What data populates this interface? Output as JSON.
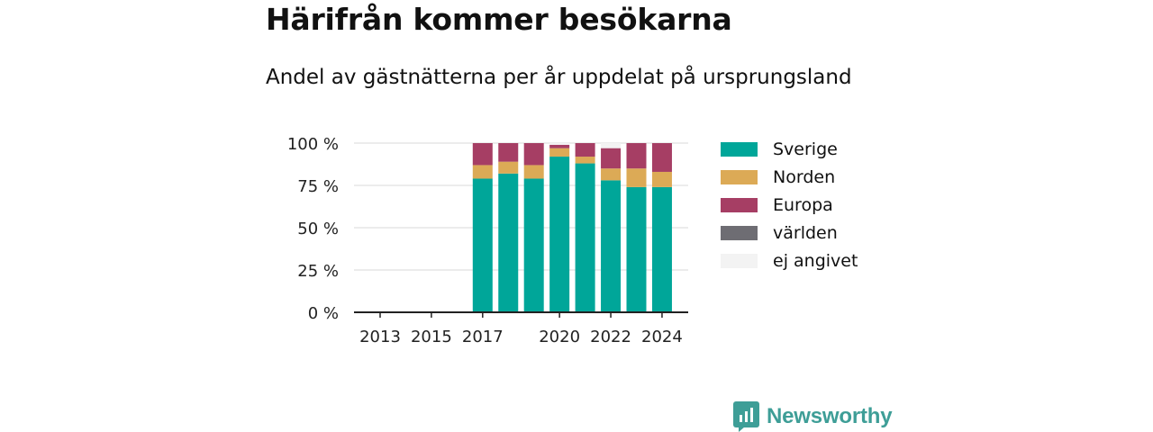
{
  "title": "Härifrån kommer besökarna",
  "subtitle": "Andel av gästnätterna per år uppdelat på ursprungsland",
  "brand": {
    "name": "Newsworthy",
    "color": "#3e9e97",
    "logo_icon": "bar-chart-speech-bubble-icon"
  },
  "chart_data": {
    "type": "bar",
    "stacked": true,
    "categories": [
      "2013",
      "2014",
      "2015",
      "2016",
      "2017",
      "2018",
      "2019",
      "2020",
      "2021",
      "2022",
      "2023",
      "2024"
    ],
    "x_tick_labels": [
      "2013",
      "2015",
      "2017",
      "2020",
      "2022",
      "2024"
    ],
    "y_tick_labels": [
      "0 %",
      "25 %",
      "50 %",
      "75 %",
      "100 %"
    ],
    "ylim": [
      0,
      100
    ],
    "grid": true,
    "legend_position": "right",
    "series": [
      {
        "name": "Sverige",
        "color": "#00a699",
        "values": [
          null,
          null,
          null,
          null,
          79,
          82,
          79,
          92,
          88,
          78,
          74,
          74
        ]
      },
      {
        "name": "Norden",
        "color": "#dcaa56",
        "values": [
          null,
          null,
          null,
          null,
          8,
          7,
          8,
          5,
          4,
          7,
          11,
          9
        ]
      },
      {
        "name": "Europa",
        "color": "#a63e64",
        "values": [
          null,
          null,
          null,
          null,
          13,
          11,
          13,
          2,
          8,
          12,
          15,
          17
        ]
      },
      {
        "name": "världen",
        "color": "#6e6d73",
        "values": [
          null,
          null,
          null,
          null,
          0,
          0,
          0,
          0,
          0,
          0,
          0,
          0
        ]
      },
      {
        "name": "ej angivet",
        "color": "#f3f3f3",
        "values": [
          null,
          null,
          null,
          null,
          0,
          0,
          0,
          1,
          0,
          3,
          0,
          0
        ]
      }
    ]
  }
}
